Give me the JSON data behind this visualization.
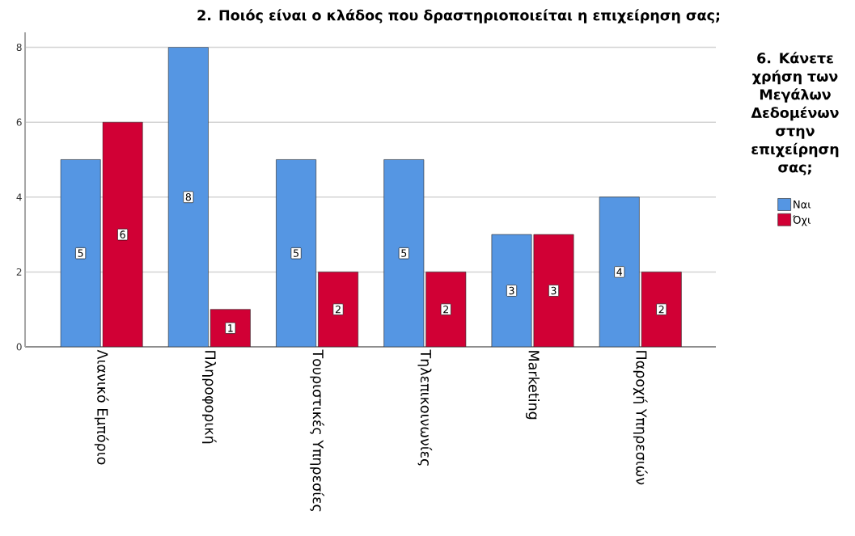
{
  "chart_data": {
    "type": "bar",
    "title": "2. Ποιός είναι ο κλάδος που δραστηριοποιείται η επιχείρηση σας;",
    "legend_title": "6. Κάνετε χρήση των Μεγάλων Δεδομένων στην επιχείρηση σας;",
    "categories": [
      "Λιανικό Εμπόριο",
      "Πληροφορική",
      "Τουριστικές Υπηρεσίες",
      "Τηλεπικοινωνίες",
      "Marketing",
      "Παροχή Υπηρεσιών"
    ],
    "series": [
      {
        "name": "Ναι",
        "color": "#5596e3",
        "values": [
          5,
          8,
          5,
          5,
          3,
          4
        ]
      },
      {
        "name": "Όχι",
        "color": "#d10035",
        "values": [
          6,
          1,
          2,
          2,
          3,
          2
        ]
      }
    ],
    "ylim": [
      0,
      8.4
    ],
    "yticks": [
      0,
      2,
      4,
      6,
      8
    ],
    "grid": "y",
    "legend": "right",
    "data_labels": true
  }
}
